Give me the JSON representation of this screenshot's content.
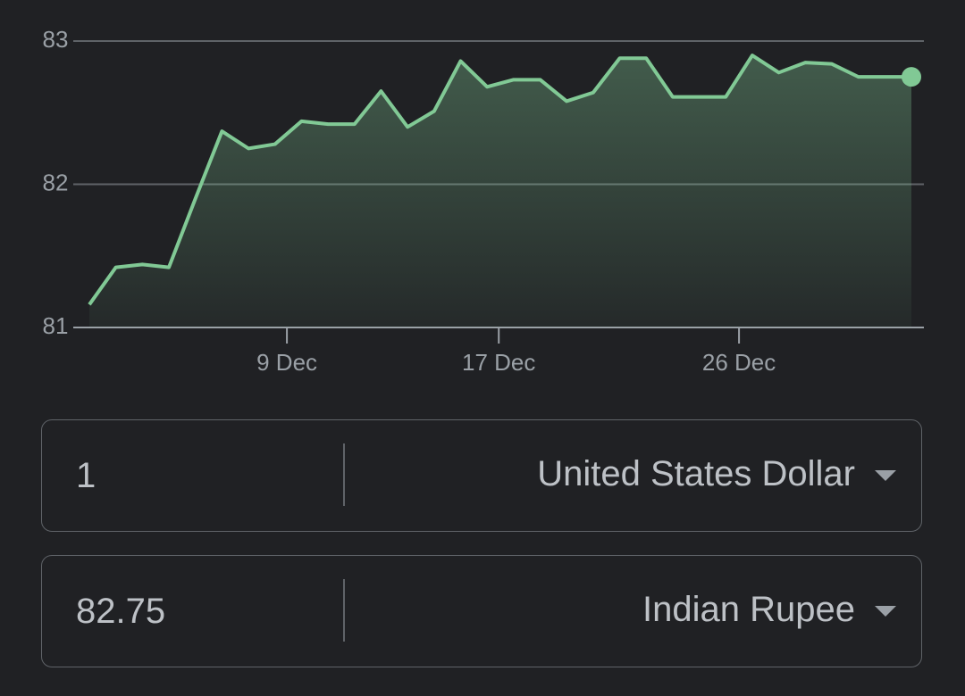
{
  "chart_data": {
    "type": "area",
    "categories": [
      null,
      null,
      null,
      null,
      null,
      null,
      null,
      null,
      null,
      null,
      null,
      null,
      null,
      null,
      null,
      null,
      null,
      null,
      null,
      null,
      null,
      null,
      null,
      null,
      null,
      null,
      null,
      null,
      null,
      null,
      null,
      null
    ],
    "values": [
      81.16,
      81.42,
      81.44,
      81.42,
      81.9,
      82.37,
      82.25,
      82.28,
      82.44,
      82.42,
      82.42,
      82.65,
      82.4,
      82.51,
      82.86,
      82.68,
      82.73,
      82.73,
      82.58,
      82.64,
      82.88,
      82.88,
      82.61,
      82.61,
      82.61,
      82.9,
      82.78,
      82.85,
      82.84,
      82.75,
      82.75,
      82.75
    ],
    "color": "#81c995",
    "ylim": [
      81,
      83
    ],
    "yticks": [
      81,
      82,
      83
    ],
    "xlim": [
      0,
      31
    ],
    "xticks": [
      {
        "value": 7.45,
        "label": "9 Dec"
      },
      {
        "value": 15.44,
        "label": "17 Dec"
      },
      {
        "value": 24.5,
        "label": "26 Dec"
      }
    ],
    "grid": true
  },
  "converter": {
    "from_amount": "1",
    "from_currency": "United States Dollar",
    "to_amount": "82.75",
    "to_currency": "Indian Rupee"
  }
}
